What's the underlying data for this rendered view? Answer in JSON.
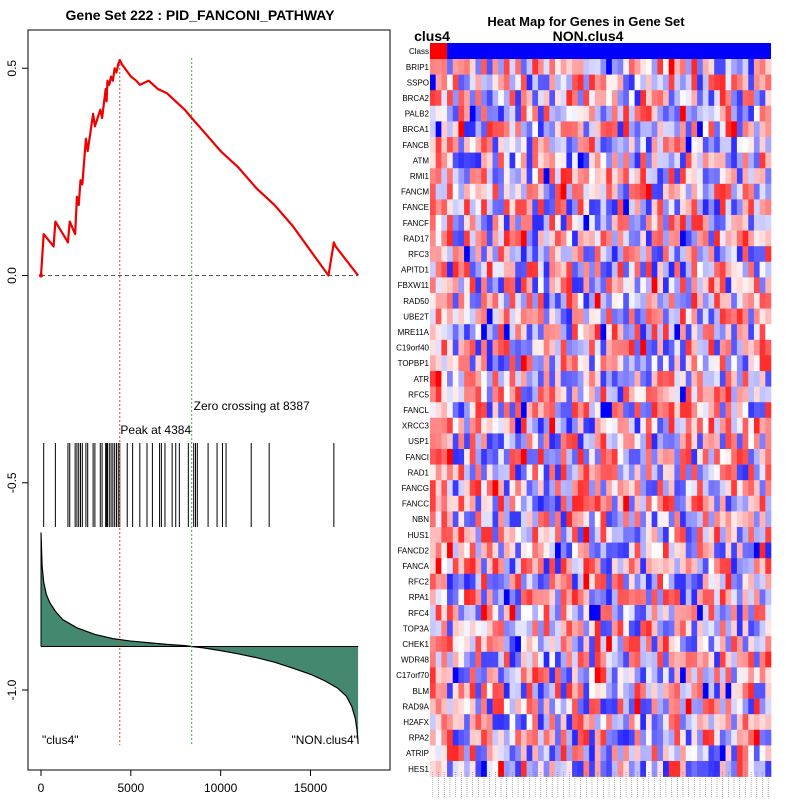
{
  "chart_data": [
    {
      "type": "line",
      "title": "Gene Set  222 : PID_FANCONI_PATHWAY",
      "xlim": [
        0,
        17700
      ],
      "ylim": [
        -1.15,
        0.58
      ],
      "x_ticks": [
        0,
        5000,
        10000,
        15000
      ],
      "x_tick_labels": [
        "0",
        "5000",
        "10000",
        "15000"
      ],
      "y_ticks": [
        0.5,
        0.0,
        -0.5,
        -1.0
      ],
      "y_tick_labels": [
        "0.5",
        "0.0",
        "-0.5",
        "-1.0"
      ],
      "es_curve": {
        "x": [
          0,
          150,
          700,
          800,
          1500,
          1600,
          1900,
          2000,
          2100,
          2200,
          2300,
          2500,
          2600,
          2900,
          3000,
          3300,
          3400,
          3600,
          3650,
          3700,
          3800,
          3900,
          4000,
          4100,
          4200,
          4300,
          4384,
          4500,
          5000,
          5300,
          5500,
          6000,
          6500,
          7000,
          7500,
          8000,
          8387,
          9000,
          10000,
          11000,
          12000,
          13000,
          14000,
          15000,
          16000,
          16300,
          16400,
          17650
        ],
        "y": [
          0.0,
          0.1,
          0.07,
          0.13,
          0.08,
          0.13,
          0.1,
          0.19,
          0.17,
          0.23,
          0.22,
          0.33,
          0.3,
          0.39,
          0.36,
          0.4,
          0.38,
          0.45,
          0.42,
          0.47,
          0.46,
          0.48,
          0.47,
          0.5,
          0.49,
          0.51,
          0.52,
          0.51,
          0.48,
          0.47,
          0.46,
          0.47,
          0.45,
          0.44,
          0.42,
          0.4,
          0.38,
          0.35,
          0.3,
          0.26,
          0.21,
          0.17,
          0.12,
          0.06,
          0.0,
          0.08,
          0.07,
          0.0
        ]
      },
      "peak": {
        "x": 4384,
        "label": "Peak at 4384"
      },
      "zero_crossing": {
        "x": 8387,
        "label": "Zero crossing at 8387"
      },
      "hit_positions": [
        150,
        800,
        1500,
        1600,
        1900,
        2000,
        2100,
        2200,
        2300,
        2500,
        2600,
        2900,
        3000,
        3300,
        3400,
        3600,
        3650,
        3700,
        3800,
        3900,
        4000,
        4100,
        4200,
        4300,
        4384,
        4800,
        5100,
        5500,
        5900,
        6200,
        6600,
        6700,
        6900,
        7300,
        7500,
        7700,
        8200,
        8500,
        8600,
        8700,
        9300,
        9800,
        10100,
        10300,
        11700,
        12700,
        16300
      ],
      "ranked_metric": {
        "x": [
          0,
          60,
          150,
          300,
          500,
          800,
          1200,
          2000,
          3000,
          4000,
          5000,
          6000,
          7000,
          8000,
          8387,
          9000,
          10000,
          11000,
          12000,
          13000,
          14000,
          15000,
          15800,
          16500,
          17000,
          17300,
          17500,
          17600,
          17650
        ],
        "y": [
          -0.62,
          -0.7,
          -0.74,
          -0.77,
          -0.79,
          -0.81,
          -0.83,
          -0.85,
          -0.866,
          -0.876,
          -0.882,
          -0.886,
          -0.89,
          -0.893,
          -0.895,
          -0.898,
          -0.905,
          -0.913,
          -0.922,
          -0.933,
          -0.947,
          -0.962,
          -0.978,
          -0.995,
          -1.015,
          -1.04,
          -1.07,
          -1.1,
          -1.13
        ],
        "baseline": -0.895
      },
      "annotations": {
        "left_label": "\"clus4\"",
        "right_label": "\"NON.clus4\""
      }
    },
    {
      "type": "heatmap",
      "title": "Heat Map for Genes in Gene Set",
      "class_labels": {
        "left": "clus4",
        "right": "NON.clus4"
      },
      "class_row_label": "Class",
      "class_colors": {
        "clus4": "#ff0000",
        "NON.clus4": "#0000ff"
      },
      "n_columns": 60,
      "n_clus4_columns": 3,
      "genes": [
        "BRIP1",
        "SSPO",
        "BRCA2",
        "PALB2",
        "BRCA1",
        "FANCB",
        "ATM",
        "RMI1",
        "FANCM",
        "FANCE",
        "FANCF",
        "RAD17",
        "RFC3",
        "APITD1",
        "FBXW11",
        "RAD50",
        "UBE2T",
        "MRE11A",
        "C19orf40",
        "TOPBP1",
        "ATR",
        "RFC5",
        "FANCL",
        "XRCC3",
        "USP1",
        "FANCI",
        "RAD1",
        "FANCG",
        "FANCC",
        "NBN",
        "HUS1",
        "FANCD2",
        "FANCA",
        "RFC2",
        "RPA1",
        "RFC4",
        "TOP3A",
        "CHEK1",
        "WDR48",
        "C17orf70",
        "BLM",
        "RAD9A",
        "H2AFX",
        "RPA2",
        "ATRIP",
        "HES1"
      ],
      "color_scale": {
        "low": "#0000ff",
        "mid": "#ffffff",
        "high": "#ff0000"
      }
    }
  ]
}
